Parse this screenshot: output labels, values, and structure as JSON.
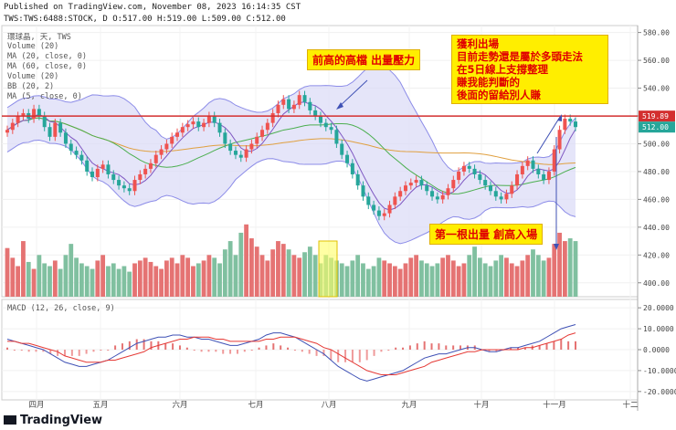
{
  "header": {
    "published": "Published on TradingView.com, November 08, 2023 16:14:35 CST",
    "ohlc": "TWS:TWS:6488:STOCK, D O:517.00 H:519.00 L:509.00 C:512.00"
  },
  "legend": {
    "symbol": "環球晶, 天, TWS",
    "indicators": [
      "Volume (20)",
      "MA (20, close, 0)",
      "MA (60, close, 0)",
      "Volume (20)",
      "BB (20, 2)",
      "MA (5, close, 0)"
    ],
    "macd": "MACD (12, 26, close, 9)"
  },
  "annotations": {
    "prev_high": "前高的高檔 出量壓力",
    "profit": [
      "獲利出場",
      "目前走勢還是屬於多頭走法",
      "在5日線上支撐整理",
      "賺我能判斷的",
      "後面的留給別人賺"
    ],
    "first_volume": "第一根出量 創高入場"
  },
  "brand": "TradingView",
  "colors": {
    "up": "#ef5350",
    "down": "#26a69a",
    "upVol": "#e57373",
    "downVol": "#80c0a0",
    "bb": "#8c8ce8",
    "bbFill": "#dadaf6",
    "ma20": "#4caf50",
    "ma60": "#e0a040",
    "ma5": "#7e57c2",
    "line": "#d32f2f",
    "macd": "#3f51b5",
    "signal": "#e53935"
  },
  "chart_data": {
    "type": "candlestick",
    "price_axis": {
      "ticks": [
        400,
        420,
        440,
        460,
        480,
        500,
        520,
        540,
        560,
        580
      ],
      "range": [
        390,
        585
      ]
    },
    "macd_axis": {
      "ticks": [
        "20.0000",
        "10.0000",
        "0.0000",
        "-10.0000",
        "-20.0000"
      ],
      "range": [
        -24,
        24
      ]
    },
    "months": [
      "四月",
      "五月",
      "六月",
      "七月",
      "八月",
      "九月",
      "十月",
      "十一月",
      "十二"
    ],
    "horizontal_line": 519.89,
    "price_labels": [
      {
        "value": 519.89,
        "text": "519.89",
        "color": "#d32f2f"
      },
      {
        "value": 512.0,
        "text": "512.00",
        "color": "#26a69a"
      }
    ],
    "closes": [
      510,
      515,
      520,
      522,
      518,
      525,
      520,
      512,
      505,
      515,
      508,
      500,
      495,
      492,
      488,
      480,
      476,
      482,
      485,
      478,
      474,
      470,
      468,
      466,
      474,
      478,
      482,
      486,
      492,
      496,
      500,
      505,
      508,
      512,
      514,
      516,
      512,
      515,
      520,
      515,
      508,
      500,
      495,
      492,
      490,
      496,
      500,
      505,
      510,
      515,
      522,
      528,
      532,
      525,
      528,
      535,
      530,
      524,
      520,
      515,
      512,
      510,
      500,
      492,
      486,
      478,
      470,
      462,
      456,
      452,
      448,
      450,
      456,
      462,
      466,
      470,
      472,
      474,
      470,
      466,
      462,
      460,
      463,
      468,
      474,
      480,
      484,
      482,
      478,
      474,
      470,
      466,
      462,
      460,
      464,
      470,
      478,
      484,
      488,
      482,
      478,
      474,
      480,
      496,
      510,
      518,
      516,
      512
    ],
    "volume": [
      425,
      418,
      412,
      430,
      415,
      410,
      420,
      414,
      412,
      416,
      410,
      420,
      428,
      418,
      414,
      412,
      410,
      416,
      420,
      412,
      414,
      410,
      412,
      408,
      414,
      416,
      418,
      415,
      412,
      410,
      416,
      418,
      414,
      420,
      418,
      412,
      414,
      416,
      420,
      418,
      414,
      424,
      430,
      420,
      436,
      442,
      432,
      426,
      420,
      416,
      424,
      430,
      428,
      424,
      420,
      418,
      422,
      426,
      420,
      414,
      420,
      418,
      416,
      414,
      412,
      416,
      420,
      414,
      410,
      412,
      418,
      416,
      414,
      412,
      410,
      414,
      418,
      420,
      416,
      414,
      412,
      414,
      418,
      420,
      416,
      412,
      414,
      420,
      426,
      418,
      414,
      412,
      416,
      420,
      418,
      414,
      412,
      416,
      420,
      424,
      420,
      416,
      418,
      428,
      436,
      430,
      432,
      430
    ],
    "macd_line": [
      5,
      4,
      3,
      2,
      1,
      0,
      -2,
      -4,
      -6,
      -7,
      -8,
      -8,
      -7,
      -6,
      -5,
      -3,
      -1,
      1,
      3,
      4,
      5,
      6,
      6,
      7,
      7,
      6,
      6,
      5,
      5,
      4,
      3,
      2,
      2,
      3,
      4,
      5,
      7,
      8,
      8,
      7,
      6,
      4,
      2,
      0,
      -2,
      -5,
      -8,
      -10,
      -12,
      -14,
      -15,
      -14,
      -13,
      -12,
      -11,
      -10,
      -8,
      -6,
      -4,
      -3,
      -2,
      -2,
      -1,
      0,
      1,
      1,
      0,
      -1,
      -1,
      0,
      1,
      1,
      2,
      3,
      4,
      6,
      8,
      10,
      11,
      12
    ],
    "signal_line": [
      4,
      4,
      3,
      3,
      2,
      1,
      0,
      -1,
      -3,
      -4,
      -5,
      -6,
      -6,
      -6,
      -5,
      -5,
      -4,
      -3,
      -2,
      -1,
      1,
      2,
      3,
      4,
      5,
      5,
      6,
      6,
      6,
      5,
      5,
      4,
      4,
      4,
      4,
      4,
      5,
      5,
      6,
      6,
      6,
      5,
      4,
      3,
      1,
      0,
      -2,
      -4,
      -6,
      -8,
      -10,
      -11,
      -12,
      -12,
      -12,
      -11,
      -10,
      -9,
      -8,
      -6,
      -5,
      -4,
      -3,
      -2,
      -1,
      -1,
      0,
      0,
      0,
      0,
      0,
      0,
      1,
      1,
      2,
      3,
      4,
      5,
      7,
      8
    ]
  }
}
